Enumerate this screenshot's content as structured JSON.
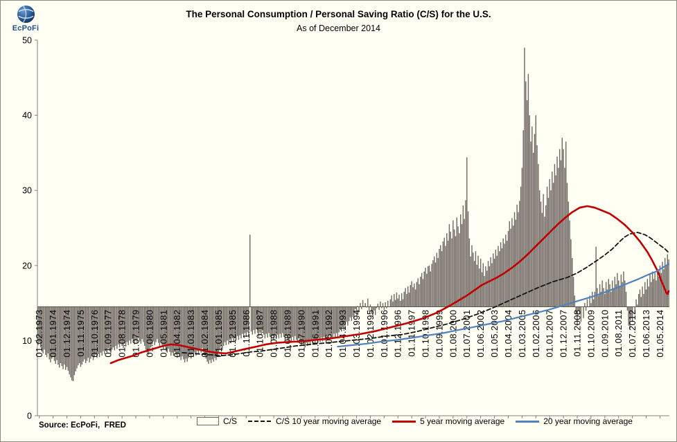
{
  "branding": {
    "name": "EcPoFi"
  },
  "source_note": "Source: EcPoFi,  FRED",
  "chart_data": {
    "type": "bar",
    "title": "The Personal Consumption / Personal Saving Ratio (C/S) for the U.S.",
    "subtitle": "As of December 2014",
    "xlabel": "",
    "ylabel": "",
    "ylim": [
      0,
      50
    ],
    "y_ticks": [
      0,
      10,
      20,
      30,
      40,
      50
    ],
    "grid": false,
    "legend_position": "bottom",
    "axis_color": "#808080",
    "cross_axis_color": "#5a554f",
    "background": "#FFFFF3",
    "x_axis_cross": 14.5,
    "start_month": "1973-01",
    "months": 504,
    "x_tick_start_index": 1,
    "x_tick_interval": 11,
    "x_tick_labels": [
      "01.02.1973",
      "01.01.1974",
      "01.12.1974",
      "01.11.1975",
      "01.10.1976",
      "01.09.1977",
      "01.08.1978",
      "01.07.1979",
      "01.06.1980",
      "01.05.1981",
      "01.04.1982",
      "01.03.1983",
      "01.02.1984",
      "01.01.1985",
      "01.12.1985",
      "01.11.1986",
      "01.10.1987",
      "01.09.1988",
      "01.08.1989",
      "01.07.1990",
      "01.06.1991",
      "01.05.1992",
      "01.04.1993",
      "01.03.1994",
      "01.02.1995",
      "01.01.1996",
      "01.12.1996",
      "01.11.1997",
      "01.10.1998",
      "01.09.1999",
      "01.08.2000",
      "01.07.2001",
      "01.06.2002",
      "01.05.2003",
      "01.04.2004",
      "01.03.2005",
      "01.02.2006",
      "01.01.2007",
      "01.12.2007",
      "01.11.2008",
      "01.10.2009",
      "01.09.2010",
      "01.08.2011",
      "01.07.2012",
      "01.06.2013",
      "01.05.2014"
    ],
    "series": [
      {
        "name": "C/S",
        "type": "bar",
        "color": "#6f6862",
        "values": [
          9.4,
          9.8,
          9.1,
          8.7,
          8.3,
          8.8,
          8.1,
          7.8,
          8.3,
          7.5,
          7.1,
          7.6,
          7.9,
          7.3,
          6.9,
          7.4,
          6.8,
          6.4,
          7.0,
          6.6,
          6.2,
          6.8,
          6.1,
          6.5,
          6.0,
          5.5,
          5.1,
          4.7,
          4.6,
          5.4,
          5.9,
          6.3,
          6.7,
          7.0,
          6.5,
          6.8,
          7.2,
          7.5,
          7.0,
          7.3,
          7.7,
          7.1,
          7.6,
          7.9,
          7.4,
          7.8,
          8.1,
          7.7,
          8.2,
          7.8,
          8.4,
          8.0,
          8.6,
          8.2,
          8.8,
          8.4,
          9.0,
          8.6,
          8.3,
          8.8,
          9.1,
          8.7,
          9.3,
          8.9,
          9.5,
          9.1,
          9.7,
          9.3,
          9.0,
          9.6,
          9.2,
          9.8,
          9.4,
          10.0,
          9.6,
          10.2,
          9.8,
          9.5,
          10.1,
          9.7,
          10.3,
          9.9,
          9.6,
          10.2,
          9.8,
          9.3,
          8.8,
          8.4,
          8.1,
          8.6,
          9.1,
          9.5,
          9.9,
          9.4,
          9.8,
          10.2,
          9.7,
          9.2,
          9.8,
          9.4,
          8.9,
          9.3,
          8.8,
          8.4,
          8.9,
          8.5,
          8.0,
          8.4,
          8.0,
          8.5,
          8.1,
          7.7,
          8.2,
          7.8,
          7.4,
          7.9,
          7.5,
          7.1,
          7.6,
          7.2,
          7.7,
          8.1,
          7.6,
          8.2,
          7.8,
          8.4,
          8.0,
          8.6,
          8.2,
          8.8,
          8.4,
          9.0,
          8.5,
          8.0,
          7.6,
          7.2,
          6.9,
          7.4,
          7.0,
          7.5,
          7.2,
          7.7,
          7.4,
          7.9,
          8.3,
          8.8,
          9.2,
          8.7,
          9.3,
          9.8,
          9.4,
          10.0,
          9.5,
          10.1,
          9.7,
          10.3,
          9.8,
          10.4,
          10.0,
          10.6,
          10.1,
          10.7,
          10.3,
          10.9,
          10.4,
          11.0,
          10.5,
          11.1,
          10.6,
          24.1,
          11.2,
          10.8,
          11.4,
          10.9,
          11.5,
          11.0,
          10.5,
          11.1,
          10.7,
          11.3,
          10.8,
          10.3,
          10.9,
          10.4,
          11.0,
          10.5,
          10.0,
          10.6,
          10.1,
          10.7,
          10.2,
          10.8,
          10.3,
          10.9,
          10.4,
          11.0,
          10.5,
          10.0,
          10.6,
          10.1,
          9.7,
          10.3,
          9.9,
          10.5,
          10.0,
          10.6,
          10.1,
          9.7,
          10.3,
          9.8,
          9.4,
          10.0,
          9.5,
          9.1,
          9.7,
          9.3,
          9.8,
          9.4,
          10.0,
          9.5,
          10.1,
          9.6,
          10.2,
          9.7,
          10.3,
          9.8,
          10.4,
          9.9,
          10.5,
          10.0,
          10.6,
          10.1,
          10.7,
          10.2,
          10.8,
          10.3,
          10.9,
          10.4,
          11.0,
          10.5,
          11.1,
          11.7,
          11.2,
          11.8,
          11.3,
          12.0,
          12.5,
          12.0,
          12.6,
          13.1,
          12.6,
          13.2,
          13.0,
          14.2,
          13.4,
          14.6,
          13.8,
          15.0,
          14.2,
          15.4,
          14.6,
          15.0,
          14.4,
          15.6,
          13.9,
          14.8,
          13.6,
          13.1,
          14.0,
          13.4,
          14.3,
          14.9,
          14.1,
          15.2,
          14.3,
          15.0,
          14.1,
          15.1,
          14.3,
          15.3,
          14.5,
          15.5,
          16.0,
          15.2,
          16.2,
          15.4,
          16.4,
          15.6,
          16.1,
          15.3,
          16.3,
          15.5,
          16.5,
          17.0,
          16.2,
          17.2,
          16.4,
          17.4,
          17.9,
          17.1,
          17.6,
          16.8,
          17.8,
          18.3,
          17.5,
          18.5,
          19.0,
          18.2,
          19.2,
          19.7,
          18.9,
          19.9,
          20.0,
          19.2,
          20.2,
          20.7,
          21.2,
          20.4,
          21.7,
          21.0,
          22.2,
          22.7,
          21.9,
          23.2,
          23.7,
          22.6,
          24.3,
          23.3,
          25.5,
          24.5,
          23.6,
          26.0,
          24.8,
          23.9,
          26.4,
          25.2,
          24.3,
          26.8,
          25.5,
          28.0,
          26.2,
          28.7,
          34.4,
          27.2,
          23.6,
          21.2,
          22.7,
          21.7,
          20.6,
          21.9,
          20.1,
          21.3,
          19.6,
          20.9,
          19.1,
          20.3,
          18.6,
          19.9,
          19.3,
          20.6,
          19.9,
          21.1,
          20.3,
          21.6,
          20.9,
          22.1,
          21.3,
          22.6,
          21.9,
          23.1,
          22.3,
          23.6,
          22.9,
          24.1,
          23.3,
          24.6,
          25.9,
          24.9,
          26.3,
          25.3,
          27.1,
          26.1,
          28.1,
          27.1,
          28.6,
          30.5,
          33.0,
          38.0,
          49.0,
          44.5,
          42.0,
          45.5,
          40.0,
          36.5,
          38.5,
          35.0,
          37.5,
          40.0,
          36.0,
          33.5,
          30.0,
          28.5,
          27.0,
          29.5,
          26.5,
          28.0,
          30.5,
          29.0,
          31.5,
          30.0,
          32.5,
          31.0,
          33.5,
          32.0,
          34.5,
          33.0,
          35.5,
          34.0,
          37.0,
          35.5,
          33.0,
          36.5,
          31.0,
          28.5,
          26.0,
          23.5,
          21.0,
          18.5,
          16.0,
          13.5,
          12.0,
          14.0,
          13.5,
          12.5,
          14.5,
          13.0,
          15.0,
          14.0,
          15.5,
          14.5,
          16.0,
          15.0,
          16.5,
          15.5,
          16.5,
          22.5,
          17.0,
          16.0,
          17.5,
          16.5,
          18.0,
          17.0,
          16.2,
          17.8,
          16.8,
          18.2,
          17.5,
          16.5,
          18.0,
          17.0,
          18.5,
          17.5,
          19.0,
          18.0,
          17.2,
          18.8,
          17.8,
          19.2,
          18.0,
          16.5,
          14.0,
          12.0,
          11.5,
          13.0,
          12.5,
          14.5,
          13.5,
          15.5,
          14.8,
          16.2,
          16.8,
          15.8,
          17.2,
          16.2,
          17.8,
          16.8,
          18.2,
          17.2,
          18.8,
          17.8,
          19.2,
          18.2,
          19.0,
          18.0,
          19.5,
          18.5,
          20.0,
          19.0,
          20.5,
          19.5,
          21.0,
          20.0,
          21.5,
          20.8
        ]
      },
      {
        "name": "C/S 10 year moving average",
        "type": "line",
        "dash": true,
        "color": "#141414",
        "width": 1.8,
        "points": [
          [
            115,
            8.4
          ],
          [
            122,
            8.3
          ],
          [
            130,
            8.2
          ],
          [
            138,
            8.1
          ],
          [
            146,
            8.0
          ],
          [
            154,
            8.1
          ],
          [
            162,
            8.3
          ],
          [
            170,
            8.5
          ],
          [
            178,
            8.6
          ],
          [
            186,
            8.8
          ],
          [
            194,
            9.0
          ],
          [
            206,
            9.3
          ],
          [
            218,
            9.5
          ],
          [
            230,
            9.7
          ],
          [
            242,
            9.9
          ],
          [
            254,
            10.1
          ],
          [
            266,
            10.3
          ],
          [
            278,
            10.6
          ],
          [
            290,
            10.8
          ],
          [
            302,
            11.2
          ],
          [
            314,
            11.7
          ],
          [
            326,
            12.2
          ],
          [
            338,
            12.8
          ],
          [
            350,
            13.5
          ],
          [
            362,
            14.3
          ],
          [
            374,
            15.2
          ],
          [
            386,
            16.1
          ],
          [
            398,
            17.0
          ],
          [
            410,
            17.8
          ],
          [
            422,
            18.4
          ],
          [
            430,
            19.0
          ],
          [
            438,
            19.8
          ],
          [
            446,
            20.7
          ],
          [
            452,
            21.4
          ],
          [
            458,
            22.2
          ],
          [
            464,
            23.2
          ],
          [
            468,
            23.8
          ],
          [
            472,
            24.2
          ],
          [
            478,
            24.4
          ],
          [
            484,
            24.1
          ],
          [
            488,
            23.7
          ],
          [
            492,
            23.2
          ],
          [
            496,
            22.7
          ],
          [
            500,
            22.2
          ],
          [
            503,
            21.7
          ]
        ]
      },
      {
        "name": "5 year moving average",
        "type": "line",
        "dash": false,
        "color": "#c00000",
        "width": 2.6,
        "points": [
          [
            58,
            7.0
          ],
          [
            64,
            7.4
          ],
          [
            70,
            7.7
          ],
          [
            76,
            8.0
          ],
          [
            82,
            8.4
          ],
          [
            88,
            8.7
          ],
          [
            94,
            9.0
          ],
          [
            100,
            9.3
          ],
          [
            106,
            9.5
          ],
          [
            112,
            9.4
          ],
          [
            118,
            9.2
          ],
          [
            126,
            8.9
          ],
          [
            134,
            8.6
          ],
          [
            142,
            8.4
          ],
          [
            150,
            8.3
          ],
          [
            158,
            8.6
          ],
          [
            166,
            8.9
          ],
          [
            174,
            9.2
          ],
          [
            182,
            9.5
          ],
          [
            190,
            9.7
          ],
          [
            198,
            9.8
          ],
          [
            210,
            9.9
          ],
          [
            222,
            10.1
          ],
          [
            234,
            10.3
          ],
          [
            246,
            10.6
          ],
          [
            258,
            10.9
          ],
          [
            270,
            11.3
          ],
          [
            282,
            11.8
          ],
          [
            294,
            12.3
          ],
          [
            306,
            12.9
          ],
          [
            318,
            13.7
          ],
          [
            330,
            14.8
          ],
          [
            342,
            16.0
          ],
          [
            354,
            17.4
          ],
          [
            366,
            18.4
          ],
          [
            372,
            19.0
          ],
          [
            378,
            19.7
          ],
          [
            384,
            20.5
          ],
          [
            390,
            21.4
          ],
          [
            396,
            22.4
          ],
          [
            402,
            23.4
          ],
          [
            408,
            24.4
          ],
          [
            414,
            25.4
          ],
          [
            420,
            26.3
          ],
          [
            426,
            27.1
          ],
          [
            432,
            27.7
          ],
          [
            438,
            27.9
          ],
          [
            444,
            27.7
          ],
          [
            450,
            27.3
          ],
          [
            456,
            26.9
          ],
          [
            462,
            26.2
          ],
          [
            468,
            25.4
          ],
          [
            474,
            24.4
          ],
          [
            480,
            23.2
          ],
          [
            486,
            21.8
          ],
          [
            490,
            20.6
          ],
          [
            494,
            19.3
          ],
          [
            497,
            18.0
          ],
          [
            499,
            17.2
          ],
          [
            501,
            16.4
          ],
          [
            502,
            16.2
          ],
          [
            503,
            16.6
          ]
        ]
      },
      {
        "name": "20 year moving average",
        "type": "line",
        "dash": false,
        "color": "#4f81bd",
        "width": 2.2,
        "points": [
          [
            239,
            9.2
          ],
          [
            251,
            9.4
          ],
          [
            263,
            9.6
          ],
          [
            275,
            9.9
          ],
          [
            287,
            10.1
          ],
          [
            299,
            10.4
          ],
          [
            311,
            10.7
          ],
          [
            323,
            11.0
          ],
          [
            335,
            11.4
          ],
          [
            347,
            11.8
          ],
          [
            359,
            12.2
          ],
          [
            371,
            12.6
          ],
          [
            383,
            13.1
          ],
          [
            395,
            13.6
          ],
          [
            407,
            14.1
          ],
          [
            419,
            14.7
          ],
          [
            431,
            15.3
          ],
          [
            443,
            15.9
          ],
          [
            455,
            16.6
          ],
          [
            467,
            17.4
          ],
          [
            479,
            18.2
          ],
          [
            487,
            18.8
          ],
          [
            493,
            19.2
          ],
          [
            498,
            19.7
          ],
          [
            503,
            20.2
          ]
        ]
      }
    ]
  }
}
